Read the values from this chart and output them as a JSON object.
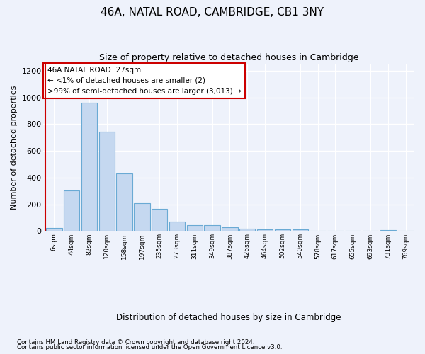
{
  "title": "46A, NATAL ROAD, CAMBRIDGE, CB1 3NY",
  "subtitle": "Size of property relative to detached houses in Cambridge",
  "xlabel": "Distribution of detached houses by size in Cambridge",
  "ylabel": "Number of detached properties",
  "annotation_title": "46A NATAL ROAD: 27sqm",
  "annotation_line2": "← <1% of detached houses are smaller (2)",
  "annotation_line3": ">99% of semi-detached houses are larger (3,013) →",
  "footer_line1": "Contains HM Land Registry data © Crown copyright and database right 2024.",
  "footer_line2": "Contains public sector information licensed under the Open Government Licence v3.0.",
  "bar_labels": [
    "6sqm",
    "44sqm",
    "82sqm",
    "120sqm",
    "158sqm",
    "197sqm",
    "235sqm",
    "273sqm",
    "311sqm",
    "349sqm",
    "387sqm",
    "426sqm",
    "464sqm",
    "502sqm",
    "540sqm",
    "578sqm",
    "617sqm",
    "655sqm",
    "693sqm",
    "731sqm",
    "769sqm"
  ],
  "bar_values": [
    25,
    305,
    963,
    743,
    430,
    210,
    168,
    70,
    47,
    47,
    30,
    20,
    13,
    13,
    13,
    0,
    0,
    0,
    0,
    10,
    0
  ],
  "bar_color": "#c5d8f0",
  "bar_edge_color": "#6aaad4",
  "marker_color": "#cc0000",
  "annotation_box_color": "white",
  "annotation_box_edge": "#cc0000",
  "ylim": [
    0,
    1250
  ],
  "yticks": [
    0,
    200,
    400,
    600,
    800,
    1000,
    1200
  ],
  "background_color": "#eef2fb",
  "grid_color": "#d0d8e8"
}
